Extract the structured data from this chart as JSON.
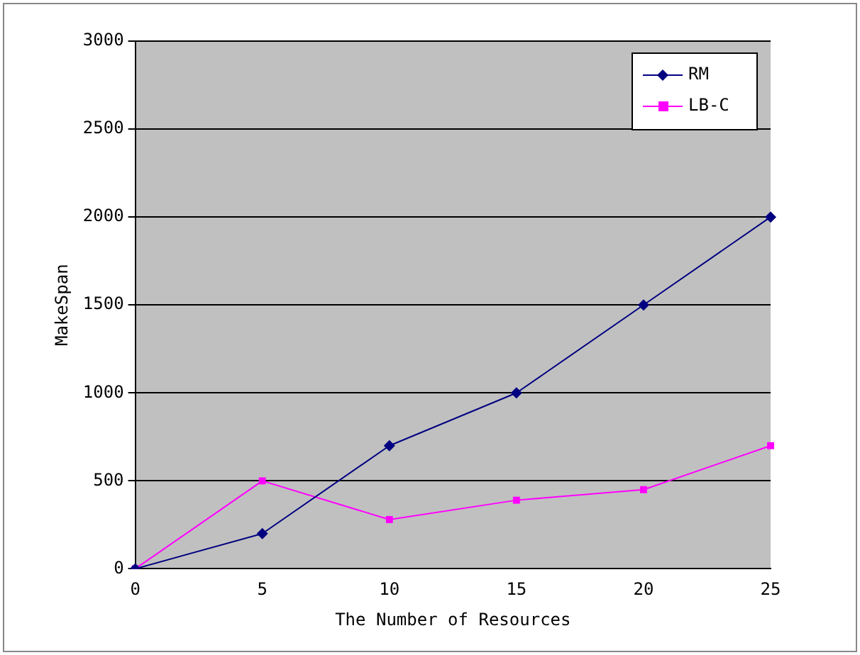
{
  "chart_data": {
    "type": "line",
    "xlabel": "The Number of Resources",
    "ylabel": "MakeSpan",
    "categories": [
      "0",
      "5",
      "10",
      "15",
      "20",
      "25"
    ],
    "series": [
      {
        "name": "RM",
        "color": "#000080",
        "marker": "diamond",
        "values": [
          0,
          200,
          700,
          1000,
          1500,
          2000
        ]
      },
      {
        "name": "LB-C",
        "color": "#ff00ff",
        "marker": "square",
        "values": [
          0,
          500,
          280,
          390,
          450,
          700
        ]
      }
    ],
    "ylim": [
      0,
      3000
    ],
    "yticks": [
      0,
      500,
      1000,
      1500,
      2000,
      2500,
      3000
    ],
    "grid": "y",
    "legend": "top right"
  }
}
